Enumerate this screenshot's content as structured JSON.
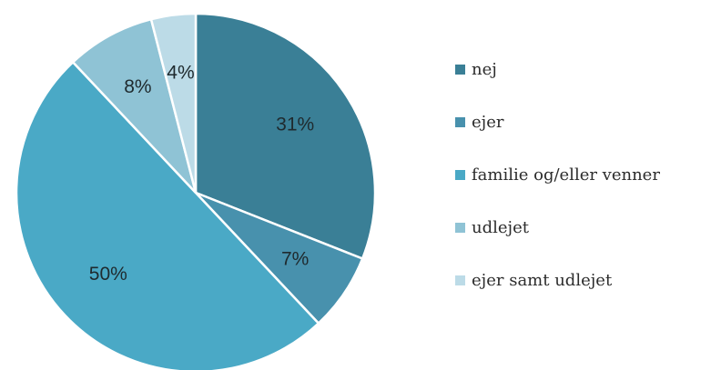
{
  "chart_data": {
    "type": "pie",
    "categories": [
      "nej",
      "ejer",
      "familie og/eller venner",
      "udlejet",
      "ejer samt udlejet"
    ],
    "values": [
      31,
      7,
      50,
      8,
      4
    ],
    "value_labels": [
      "31%",
      "7%",
      "50%",
      "8%",
      "4%"
    ],
    "colors": [
      "#3a7f96",
      "#4891ad",
      "#4aa9c6",
      "#8fc3d5",
      "#bcdbe7"
    ],
    "legend_position": "right"
  }
}
